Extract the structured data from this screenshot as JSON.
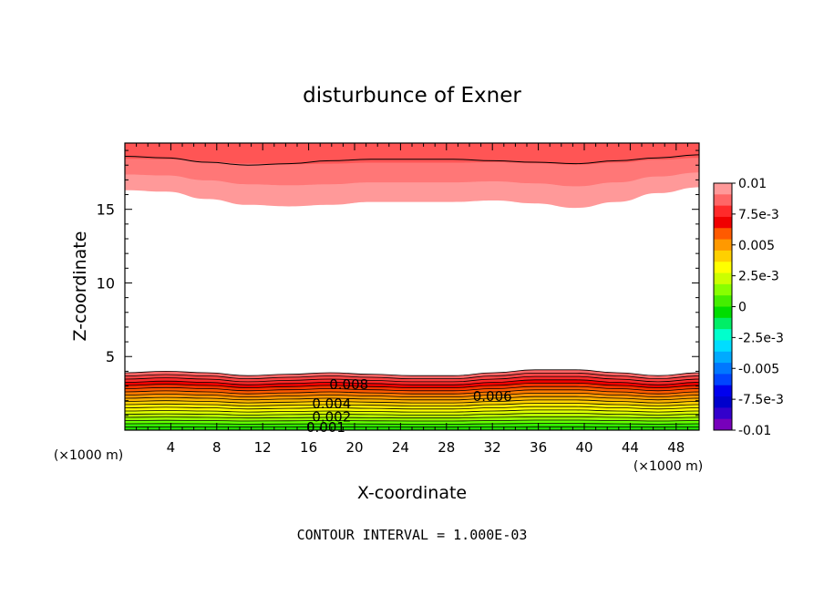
{
  "chart_data": {
    "type": "heatmap",
    "title": "disturbunce of Exner",
    "xlabel": "X-coordinate",
    "ylabel": "Z-coordinate",
    "x_unit_left": "(×1000 m)",
    "x_unit_right": "(×1000 m)",
    "xlim": [
      0,
      50
    ],
    "ylim": [
      0,
      19.5
    ],
    "x_ticks": [
      4,
      8,
      12,
      16,
      20,
      24,
      28,
      32,
      36,
      40,
      44,
      48
    ],
    "y_ticks": [
      5,
      10,
      15
    ],
    "footer": "CONTOUR INTERVAL = 1.000E-03",
    "contour_interval": 0.001,
    "contour_labels": [
      {
        "text": "0.008",
        "x": 19.5,
        "z": 3.1
      },
      {
        "text": "0.006",
        "x": 32.0,
        "z": 2.3
      },
      {
        "text": "0.004",
        "x": 18.0,
        "z": 1.8
      },
      {
        "text": "0.002",
        "x": 18.0,
        "z": 0.9
      },
      {
        "text": "0.001",
        "x": 17.5,
        "z": 0.2
      }
    ],
    "colorbar": {
      "min": -0.01,
      "max": 0.01,
      "tick_labels": [
        "0.01",
        "7.5e-3",
        "0.005",
        "2.5e-3",
        "0",
        "-2.5e-3",
        "-0.005",
        "-7.5e-3",
        "-0.01"
      ],
      "colors": [
        "#ff9999",
        "#ff6666",
        "#ff2a2a",
        "#f00000",
        "#ff5a00",
        "#ff9900",
        "#ffd000",
        "#ffff00",
        "#ccff00",
        "#88ff00",
        "#44ee00",
        "#00dd00",
        "#00ee66",
        "#00ffcc",
        "#00ddff",
        "#00aaff",
        "#0077ff",
        "#0044ff",
        "#0000ee",
        "#0000cc",
        "#3300cc",
        "#7700bb"
      ]
    },
    "upper_layer": {
      "description_levels": [
        0.01,
        0.009,
        0.008
      ],
      "bottom_z": [
        16.3,
        16.2,
        15.7,
        15.3,
        15.2,
        15.3,
        15.5,
        15.5,
        15.5,
        15.6,
        15.4,
        15.1,
        15.5,
        16.1,
        16.5
      ],
      "band_colors": [
        "#ff9999",
        "#ff7777",
        "#ff5555"
      ],
      "contour_z": [
        18.6,
        18.5,
        18.2,
        18.0,
        18.1,
        18.3,
        18.4,
        18.4,
        18.4,
        18.3,
        18.2,
        18.1,
        18.3,
        18.5,
        18.7
      ]
    },
    "lower_layer": {
      "top_z": [
        3.9,
        4.0,
        3.9,
        3.7,
        3.8,
        3.9,
        3.8,
        3.7,
        3.7,
        3.9,
        4.1,
        4.1,
        3.9,
        3.7,
        3.9
      ],
      "levels": [
        0.0095,
        0.009,
        0.0085,
        0.008,
        0.0075,
        0.007,
        0.0065,
        0.006,
        0.0055,
        0.005,
        0.0045,
        0.004,
        0.0035,
        0.003,
        0.0025,
        0.002,
        0.0015,
        0.001
      ],
      "band_colors": [
        "#ff6666",
        "#ff4444",
        "#ff2a2a",
        "#f00000",
        "#ff3300",
        "#ff5a00",
        "#ff7a00",
        "#ff9900",
        "#ffb400",
        "#ffd000",
        "#ffee00",
        "#ffff00",
        "#ddff00",
        "#bbff00",
        "#99ff00",
        "#66ff00",
        "#33ee00",
        "#22dd00"
      ]
    }
  }
}
